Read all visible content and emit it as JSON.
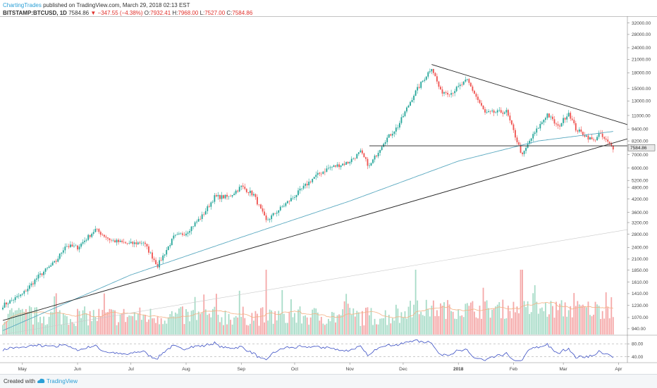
{
  "header": {
    "author": "ChartingTrades",
    "published": "published on TradingView.com, March 29, 2018 02:13 EST",
    "symbol": "BITSTAMP:BTCUSD, 1D",
    "last": "7584.86",
    "arrow": "▼",
    "change": "−347.55 (−4.38%)",
    "open_label": "O:",
    "open": "7932.41",
    "high_label": "H:",
    "high": "7968.00",
    "low_label": "L:",
    "low": "7527.00",
    "close_label": "C:",
    "close": "7584.86"
  },
  "footer": {
    "created": "Created with",
    "brand": "TradingView"
  },
  "colors": {
    "up": "#26a69a",
    "down": "#ef5350",
    "up_volume": "#a8dcc8",
    "down_volume": "#f5a9a9",
    "ma": "#5aa9c0",
    "volume_ma": "#f4b183",
    "rsi": "#3b4fc4",
    "trendline": "#222222"
  },
  "chart_data": {
    "type": "candlestick",
    "price_axis": {
      "scale": "log",
      "ticks": [
        940,
        1070,
        1230,
        1410,
        1610,
        1850,
        2100,
        2400,
        2800,
        3200,
        3600,
        4200,
        4800,
        5200,
        6000,
        7000,
        8200,
        9400,
        11000,
        13000,
        15000,
        18000,
        21000,
        24000,
        28000,
        32000
      ],
      "tick_labels": [
        "940.00",
        "1070.00",
        "1230.00",
        "1410.00",
        "1610.00",
        "1850.00",
        "2100.00",
        "2400.00",
        "2800.00",
        "3200.00",
        "3600.00",
        "4200.00",
        "4800.00",
        "5200.00",
        "6000.00",
        "7000.00",
        "8200.00",
        "9400.00",
        "11000.00",
        "13000.00",
        "15000.00",
        "18000.00",
        "21000.00",
        "24000.00",
        "28000.00",
        "32000.00"
      ],
      "last_price_label": "7584.86",
      "range": [
        880,
        34000
      ]
    },
    "time_axis": {
      "labels": [
        "May",
        "Jun",
        "Jul",
        "Aug",
        "Sep",
        "Oct",
        "Nov",
        "Dec",
        "2018",
        "Feb",
        "Mar",
        "Apr"
      ],
      "start": "2017-04-20",
      "end": "2018-04-06"
    },
    "price_anchors": [
      [
        "2017-04-20",
        1230
      ],
      [
        "2017-05-01",
        1400
      ],
      [
        "2017-05-10",
        1720
      ],
      [
        "2017-05-20",
        2050
      ],
      [
        "2017-05-25",
        2450
      ],
      [
        "2017-06-01",
        2400
      ],
      [
        "2017-06-11",
        2950
      ],
      [
        "2017-06-20",
        2600
      ],
      [
        "2017-06-30",
        2500
      ],
      [
        "2017-07-08",
        2550
      ],
      [
        "2017-07-16",
        1950
      ],
      [
        "2017-07-25",
        2700
      ],
      [
        "2017-08-01",
        2850
      ],
      [
        "2017-08-10",
        3450
      ],
      [
        "2017-08-17",
        4300
      ],
      [
        "2017-08-25",
        4300
      ],
      [
        "2017-09-01",
        4850
      ],
      [
        "2017-09-08",
        4400
      ],
      [
        "2017-09-15",
        3250
      ],
      [
        "2017-09-22",
        3700
      ],
      [
        "2017-10-01",
        4350
      ],
      [
        "2017-10-12",
        5400
      ],
      [
        "2017-10-20",
        6000
      ],
      [
        "2017-10-31",
        6400
      ],
      [
        "2017-11-07",
        7200
      ],
      [
        "2017-11-12",
        6100
      ],
      [
        "2017-11-20",
        8100
      ],
      [
        "2017-11-28",
        9700
      ],
      [
        "2017-12-07",
        14000
      ],
      [
        "2017-12-17",
        19200
      ],
      [
        "2017-12-22",
        14500
      ],
      [
        "2017-12-28",
        14300
      ],
      [
        "2018-01-06",
        16500
      ],
      [
        "2018-01-16",
        11300
      ],
      [
        "2018-01-28",
        11500
      ],
      [
        "2018-02-06",
        6900
      ],
      [
        "2018-02-10",
        8200
      ],
      [
        "2018-02-20",
        11200
      ],
      [
        "2018-02-26",
        9600
      ],
      [
        "2018-03-04",
        11400
      ],
      [
        "2018-03-08",
        9400
      ],
      [
        "2018-03-18",
        8200
      ],
      [
        "2018-03-21",
        8900
      ],
      [
        "2018-03-29",
        7585
      ]
    ],
    "trendlines": [
      {
        "name": "descending",
        "from": [
          "2017-12-17",
          19800
        ],
        "to": [
          "2018-04-06",
          9900
        ]
      },
      {
        "name": "ascending",
        "from": [
          "2017-04-20",
          1035
        ],
        "to": [
          "2018-04-06",
          8400
        ]
      },
      {
        "name": "support",
        "from": [
          "2017-11-12",
          7750
        ],
        "to": [
          "2018-04-06",
          7750
        ]
      }
    ],
    "moving_average": {
      "period": 200,
      "anchors": [
        [
          "2017-04-20",
          920
        ],
        [
          "2017-07-01",
          1750
        ],
        [
          "2017-09-01",
          2700
        ],
        [
          "2017-11-01",
          4100
        ],
        [
          "2018-01-01",
          6500
        ],
        [
          "2018-02-15",
          8200
        ],
        [
          "2018-03-29",
          9150
        ]
      ]
    },
    "volume_highlights": [
      "2017-09-15",
      "2017-12-08",
      "2018-02-06",
      "2018-02-05"
    ],
    "rsi": {
      "levels": [
        40,
        80
      ],
      "level_labels": [
        "40.00",
        "80.00"
      ],
      "range": [
        22,
        100
      ]
    }
  }
}
